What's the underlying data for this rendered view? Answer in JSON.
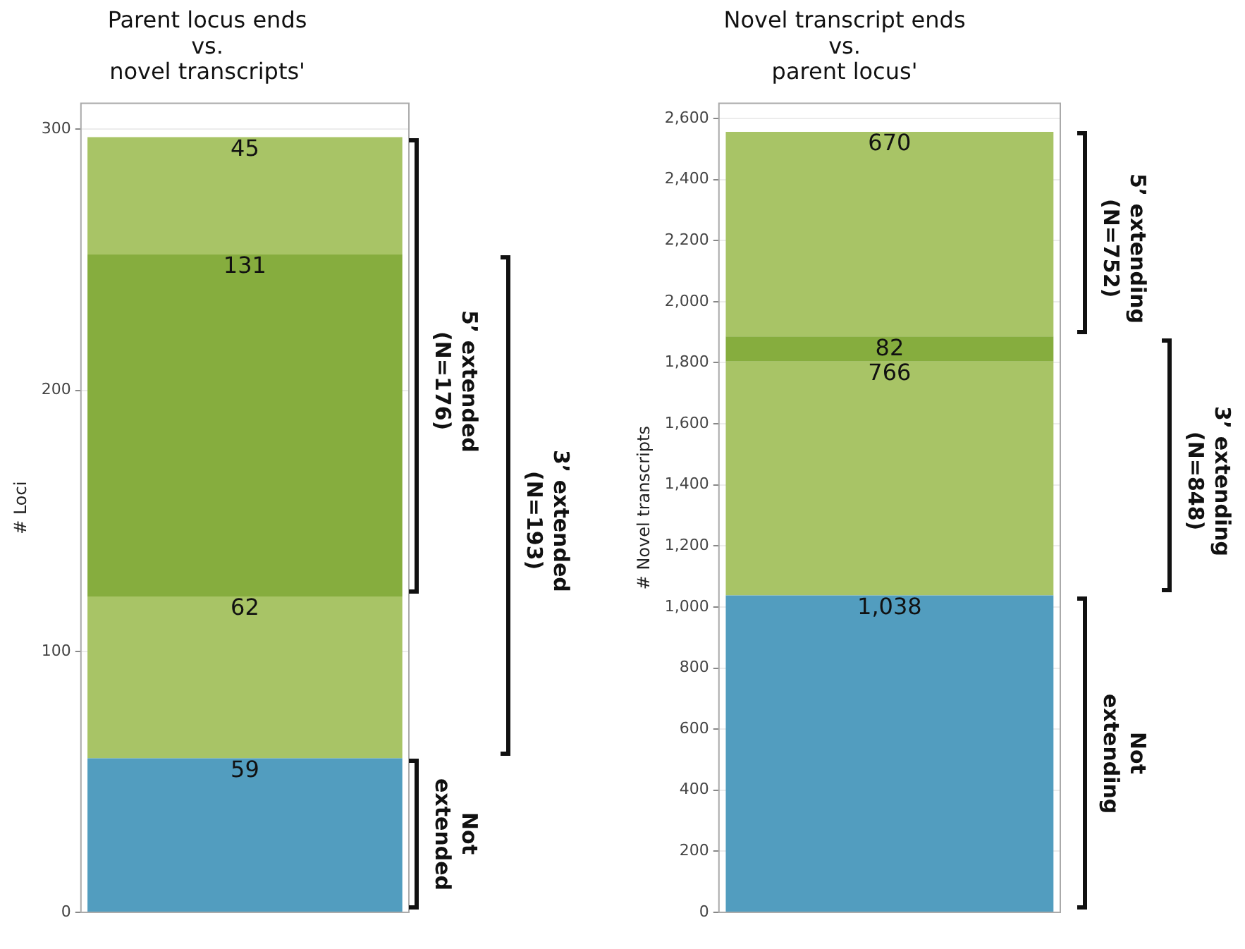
{
  "chart_data": [
    {
      "type": "bar",
      "title": "Parent locus ends\nvs.\nnovel transcripts'",
      "ylabel": "# Loci",
      "categories": [
        null
      ],
      "stacked": true,
      "data_labels": true,
      "grid": "y",
      "series": [
        {
          "color": "#529dbf",
          "values": [
            59
          ]
        },
        {
          "color": "#a8c466",
          "values": [
            62
          ]
        },
        {
          "color": "#86ad3e",
          "values": [
            131
          ]
        },
        {
          "color": "#a8c466",
          "values": [
            45
          ]
        }
      ],
      "ylim": [
        0,
        310
      ],
      "yticks": [
        0,
        100,
        200,
        300
      ],
      "annotations": [
        "5’ extended\n(N=176)",
        "3’ extended\n(N=193)",
        "Not\nextended"
      ]
    },
    {
      "type": "bar",
      "title": "Novel transcript ends\nvs.\nparent locus'",
      "ylabel": "# Novel transcripts",
      "categories": [
        null
      ],
      "stacked": true,
      "grid": "y",
      "series": [
        {
          "color": "#529dbf",
          "values": [
            1038
          ],
          "value_labels": [
            "1,038"
          ]
        },
        {
          "color": "#a8c466",
          "values": [
            766
          ],
          "value_labels": [
            "766"
          ]
        },
        {
          "color": "#86ad3e",
          "values": [
            82
          ],
          "value_labels": [
            "82"
          ]
        },
        {
          "color": "#a8c466",
          "values": [
            670
          ],
          "value_labels": [
            "670"
          ]
        }
      ],
      "ylim": [
        0,
        2650
      ],
      "yticks": [
        0,
        {
          "value": 200,
          "label": "200"
        },
        {
          "value": 400,
          "label": "400"
        },
        {
          "value": 600,
          "label": "600"
        },
        {
          "value": 800,
          "label": "800"
        },
        {
          "value": 1000,
          "label": "1,000"
        },
        {
          "value": 1200,
          "label": "1,200"
        },
        {
          "value": 1400,
          "label": "1,400"
        },
        {
          "value": 1600,
          "label": "1,600"
        },
        {
          "value": 1800,
          "label": "1,800"
        },
        {
          "value": 2000,
          "label": "2,000"
        },
        {
          "value": 2200,
          "label": "2,200"
        },
        {
          "value": 2400,
          "label": "2,400"
        },
        {
          "value": 2600,
          "label": "2,600"
        }
      ],
      "annotations": [
        "5’ extending\n(N=752)",
        "3’ extending\n(N=848)",
        "Not\nextending"
      ]
    }
  ]
}
